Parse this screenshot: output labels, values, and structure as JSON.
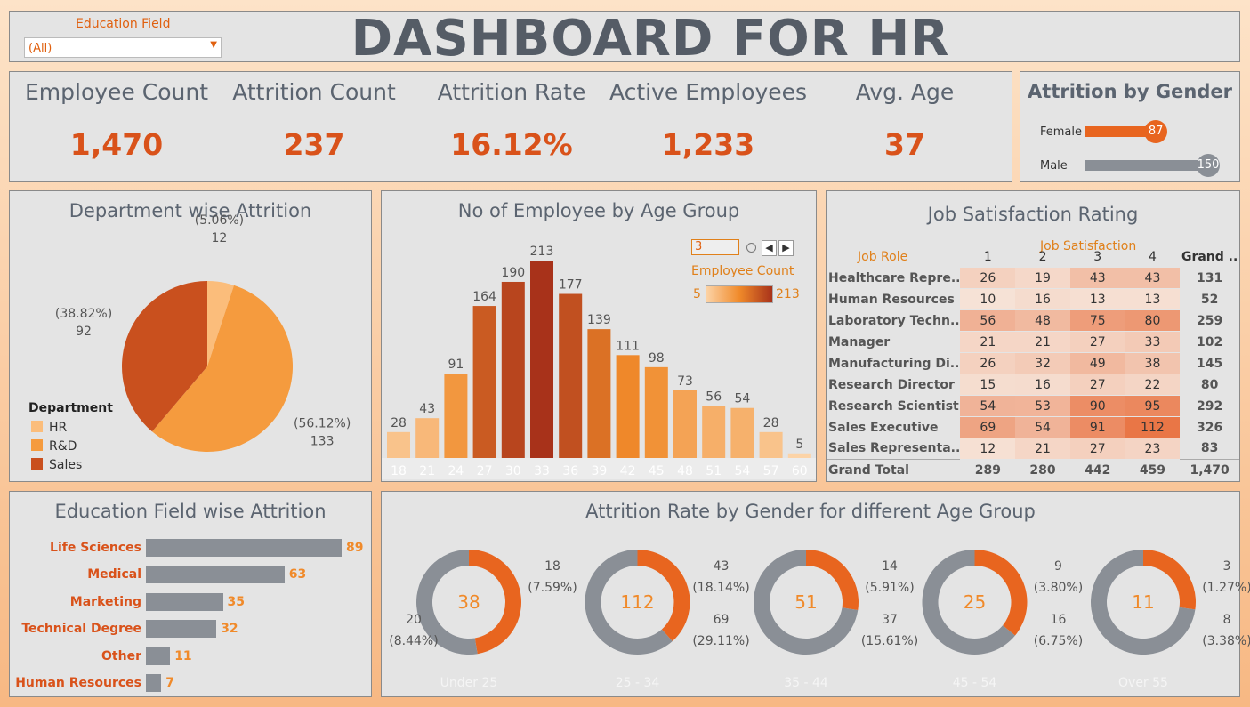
{
  "header": {
    "filter_label": "Education Field",
    "filter_value": "(All)",
    "title": "DASHBOARD FOR HR"
  },
  "kpis": [
    {
      "label": "Employee Count",
      "value": "1,470"
    },
    {
      "label": "Attrition Count",
      "value": "237"
    },
    {
      "label": "Attrition Rate",
      "value": "16.12%"
    },
    {
      "label": "Active Employees",
      "value": "1,233"
    },
    {
      "label": "Avg. Age",
      "value": "37"
    }
  ],
  "gender": {
    "title": "Attrition by Gender",
    "rows": [
      {
        "label": "Female",
        "value": 87,
        "color": "#e8651f"
      },
      {
        "label": "Male",
        "value": 150,
        "color": "#8a8f96"
      }
    ]
  },
  "department": {
    "title": "Department wise Attrition",
    "legend_title": "Department",
    "slices": [
      {
        "name": "HR",
        "value": 12,
        "pct": "(5.06%)",
        "color": "#fbbd7b"
      },
      {
        "name": "R&D",
        "value": 133,
        "pct": "(56.12%)",
        "color": "#f59b3e"
      },
      {
        "name": "Sales",
        "value": 92,
        "pct": "(38.82%)",
        "color": "#c9501e"
      }
    ]
  },
  "age_group": {
    "title": "No of Employee by Age Group",
    "param_value": "3",
    "legend_title": "Employee Count",
    "legend_min": "5",
    "legend_max": "213"
  },
  "chart_data": {
    "type": "bar",
    "categories": [
      "18",
      "21",
      "24",
      "27",
      "30",
      "33",
      "36",
      "39",
      "42",
      "45",
      "48",
      "51",
      "54",
      "57",
      "60"
    ],
    "values": [
      28,
      43,
      91,
      164,
      190,
      213,
      177,
      139,
      111,
      98,
      73,
      56,
      54,
      28,
      5
    ],
    "title": "No of Employee by Age Group",
    "ylim": [
      0,
      213
    ]
  },
  "job_satisfaction": {
    "title": "Job Satisfaction Rating",
    "column_group": "Job Satisfaction",
    "headers": [
      "Job Role",
      "1",
      "2",
      "3",
      "4",
      "Grand .."
    ],
    "rows": [
      {
        "role": "Healthcare Repre..",
        "values": [
          26,
          19,
          43,
          43
        ],
        "total": "131"
      },
      {
        "role": "Human Resources",
        "values": [
          10,
          16,
          13,
          13
        ],
        "total": "52"
      },
      {
        "role": "Laboratory Techn..",
        "values": [
          56,
          48,
          75,
          80
        ],
        "total": "259"
      },
      {
        "role": "Manager",
        "values": [
          21,
          21,
          27,
          33
        ],
        "total": "102"
      },
      {
        "role": "Manufacturing Di..",
        "values": [
          26,
          32,
          49,
          38
        ],
        "total": "145"
      },
      {
        "role": "Research Director",
        "values": [
          15,
          16,
          27,
          22
        ],
        "total": "80"
      },
      {
        "role": "Research Scientist",
        "values": [
          54,
          53,
          90,
          95
        ],
        "total": "292"
      },
      {
        "role": "Sales Executive",
        "values": [
          69,
          54,
          91,
          112
        ],
        "total": "326"
      },
      {
        "role": "Sales Representa..",
        "values": [
          12,
          21,
          27,
          23
        ],
        "total": "83"
      }
    ],
    "grand_total": {
      "label": "Grand Total",
      "values": [
        "289",
        "280",
        "442",
        "459"
      ],
      "total": "1,470"
    }
  },
  "education": {
    "title": "Education Field wise Attrition",
    "rows": [
      {
        "label": "Life Sciences",
        "value": 89
      },
      {
        "label": "Medical",
        "value": 63
      },
      {
        "label": "Marketing",
        "value": 35
      },
      {
        "label": "Technical Degree",
        "value": 32
      },
      {
        "label": "Other",
        "value": 11
      },
      {
        "label": "Human Resources",
        "value": 7
      }
    ]
  },
  "donuts": {
    "title": "Attrition Rate by Gender for different Age Group",
    "groups": [
      {
        "label": "Under 25",
        "total": "38",
        "female": 18,
        "female_pct": "(7.59%)",
        "male": 20,
        "male_pct": "(8.44%)"
      },
      {
        "label": "25 - 34",
        "total": "112",
        "female": 43,
        "female_pct": "(18.14%)",
        "male": 69,
        "male_pct": "(29.11%)"
      },
      {
        "label": "35 - 44",
        "total": "51",
        "female": 14,
        "female_pct": "(5.91%)",
        "male": 37,
        "male_pct": "(15.61%)"
      },
      {
        "label": "45 - 54",
        "total": "25",
        "female": 9,
        "female_pct": "(3.80%)",
        "male": 16,
        "male_pct": "(6.75%)"
      },
      {
        "label": "Over 55",
        "total": "11",
        "female": 3,
        "female_pct": "(1.27%)",
        "male": 8,
        "male_pct": "(3.38%)"
      }
    ]
  }
}
